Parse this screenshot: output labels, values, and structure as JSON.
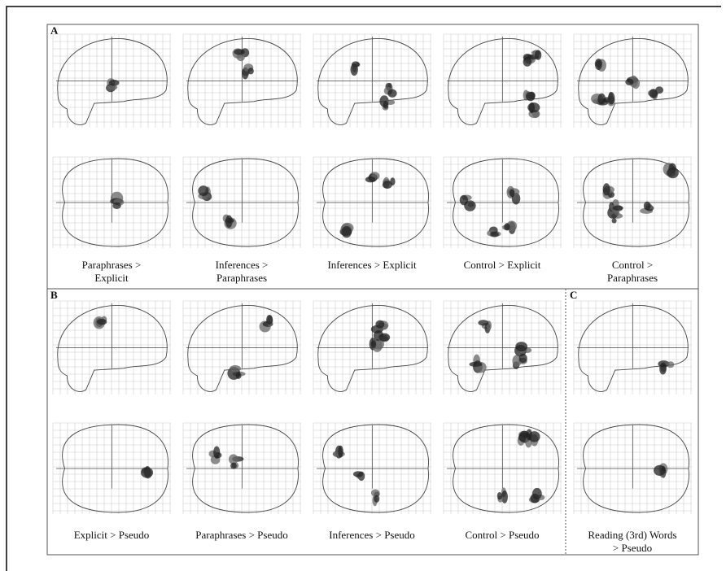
{
  "panels": [
    {
      "label": "A",
      "captions": [
        [
          "Paraphrases >",
          "Explicit"
        ],
        [
          "Inferences >",
          "Paraphrases"
        ],
        [
          "Inferences > Explicit"
        ],
        [
          "Control > Explicit"
        ],
        [
          "Control >",
          "Paraphrases"
        ]
      ]
    },
    {
      "label": "B",
      "captions": [
        [
          "Explicit > Pseudo"
        ],
        [
          "Paraphrases > Pseudo"
        ],
        [
          "Inferences > Pseudo"
        ],
        [
          "Control > Pseudo"
        ]
      ]
    },
    {
      "label": "C",
      "captions": [
        [
          "Reading (3rd) Words",
          "> Pseudo"
        ]
      ]
    }
  ]
}
